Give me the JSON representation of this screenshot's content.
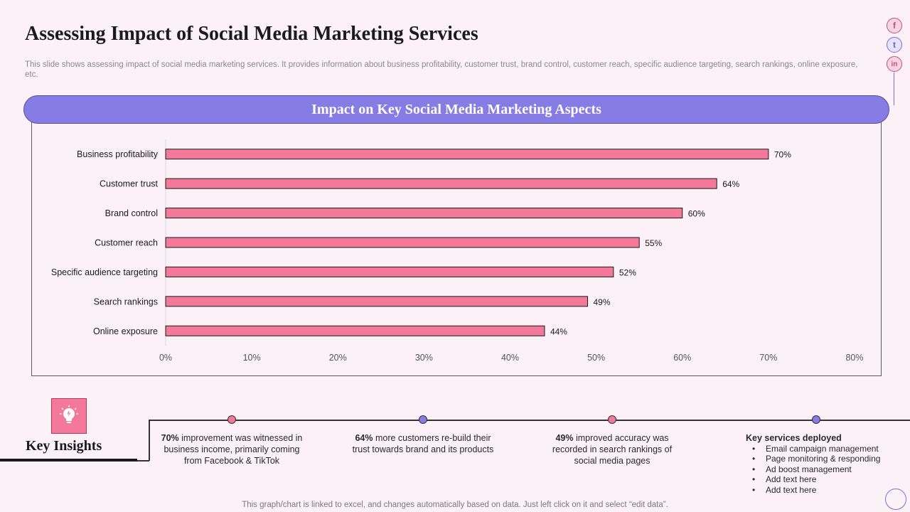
{
  "page": {
    "title": "Assessing Impact of Social Media Marketing Services",
    "subtitle": "This slide shows assessing impact of social media marketing services. It provides information about business profitability, customer trust, brand control, customer reach, specific audience targeting, search rankings, online exposure, etc.",
    "footnote": "This graph/chart is linked to excel,  and changes automatically based on data. Just left click on it and select “edit data”."
  },
  "social": {
    "facebook": "f",
    "twitter": "t",
    "linkedin": "in"
  },
  "colors": {
    "bar": "#f3789a",
    "accent_purple": "#857ce6",
    "dot_pink": "#f3789a",
    "dot_purple": "#857ce6"
  },
  "chart_data": {
    "type": "bar",
    "orientation": "horizontal",
    "title": "Impact on Key Social Media Marketing Aspects",
    "categories": [
      "Business profitability",
      "Customer trust",
      "Brand control",
      "Customer reach",
      "Specific audience targeting",
      "Search rankings",
      "Online exposure"
    ],
    "values": [
      70,
      64,
      60,
      55,
      52,
      49,
      44
    ],
    "value_labels": [
      "70%",
      "64%",
      "60%",
      "55%",
      "52%",
      "49%",
      "44%"
    ],
    "xlim": [
      0,
      80
    ],
    "xticks": [
      0,
      10,
      20,
      30,
      40,
      50,
      60,
      70,
      80
    ],
    "xtick_labels": [
      "0%",
      "10%",
      "20%",
      "30%",
      "40%",
      "50%",
      "60%",
      "70%",
      "80%"
    ],
    "xlabel": "",
    "ylabel": "",
    "grid": false
  },
  "insights": {
    "title": "Key Insights",
    "icon": "lightbulb-icon",
    "items": [
      {
        "highlight": "70%",
        "text": " improvement  was witnessed in business income, primarily coming from Facebook & TikTok"
      },
      {
        "highlight": "64%",
        "text": " more customers re-build their trust towards brand and its products"
      },
      {
        "highlight": "49%",
        "text": " improved  accuracy was recorded  in search rankings of social media pages"
      }
    ],
    "services_title": "Key services deployed",
    "services": [
      "Email campaign management",
      "Page monitoring & responding",
      "Ad boost management",
      "Add text here",
      "Add text here"
    ]
  }
}
